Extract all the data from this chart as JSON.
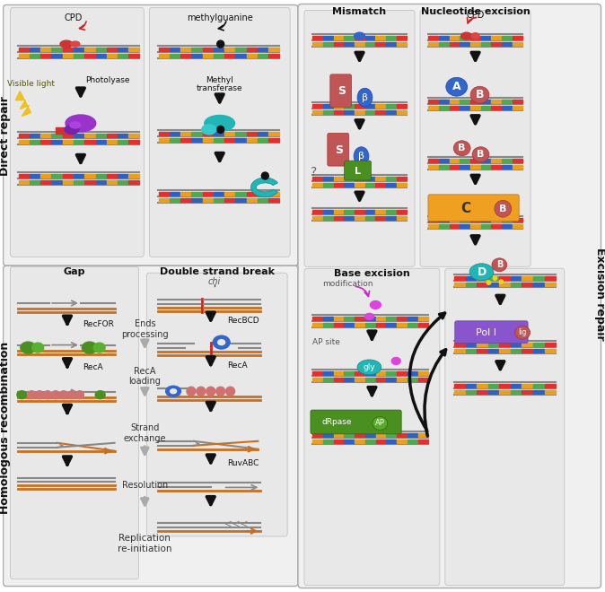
{
  "bg_color": "#ffffff",
  "panel_bg": "#e8e8e8",
  "dna_colors": [
    "#e03030",
    "#3060c0",
    "#e8a020",
    "#50a850"
  ],
  "direct_repair_label": "Direct repair",
  "homologous_label": "Homologous recombination",
  "excision_label": "Excision repair",
  "gap_label": "Gap",
  "dsb_label": "Double strand break",
  "mismatch_label": "Mismatch",
  "nucleotide_label": "Nucleotide excision",
  "base_label": "Base excision",
  "cpd_label": "CPD",
  "methyl_label": "methylguanine",
  "visible_light": "Visible light",
  "photolyase": "Photolyase",
  "methyl_transferase": "Methyl\ntransferase",
  "recfor": "RecFOR",
  "reca": "RecA",
  "recbcd": "RecBCD",
  "reca_loading": "RecA\nloading",
  "ends_processing": "Ends\nprocessing",
  "strand_exchange": "Strand\nexchange",
  "resolution": "Resolution",
  "replication": "Replication\nre-initiation",
  "ruvABC": "RuvABC",
  "modification": "modification",
  "ap_site": "AP site",
  "chi": "chi",
  "pol1": "Pol I",
  "lig": "lig"
}
